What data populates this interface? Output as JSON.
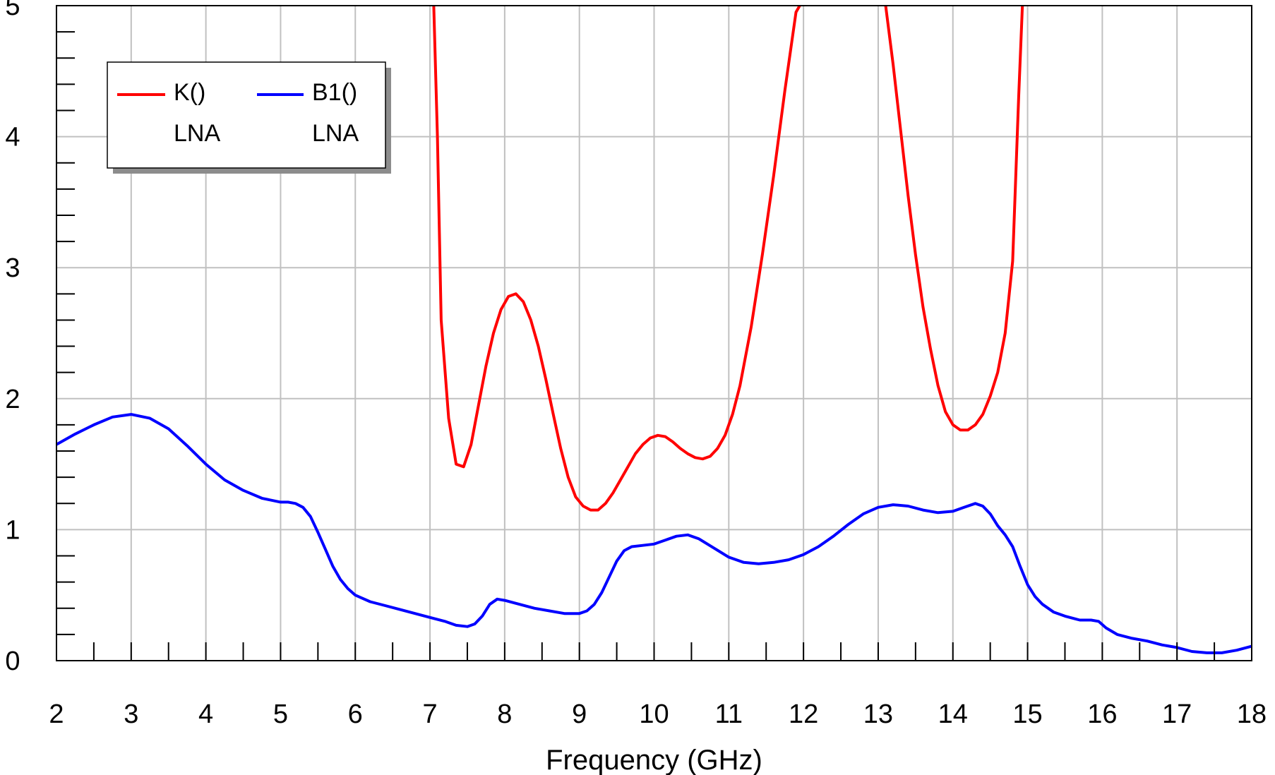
{
  "chart_data": {
    "type": "line",
    "title": "",
    "xlabel": "Frequency (GHz)",
    "ylabel": "",
    "xlim": [
      2,
      18
    ],
    "ylim": [
      0,
      5
    ],
    "xticks": [
      2,
      3,
      4,
      5,
      6,
      7,
      8,
      9,
      10,
      11,
      12,
      13,
      14,
      15,
      16,
      17,
      18
    ],
    "yticks": [
      0,
      1,
      2,
      3,
      4,
      5
    ],
    "grid": true,
    "legend_position": "top-left",
    "series": [
      {
        "name": "K()",
        "sub_label": "LNA",
        "color": "#ff0000",
        "points": [
          [
            7.05,
            5.0
          ],
          [
            7.1,
            4.0
          ],
          [
            7.15,
            2.6
          ],
          [
            7.25,
            1.85
          ],
          [
            7.35,
            1.5
          ],
          [
            7.45,
            1.48
          ],
          [
            7.55,
            1.65
          ],
          [
            7.65,
            1.95
          ],
          [
            7.75,
            2.25
          ],
          [
            7.85,
            2.5
          ],
          [
            7.95,
            2.68
          ],
          [
            8.05,
            2.78
          ],
          [
            8.15,
            2.8
          ],
          [
            8.25,
            2.74
          ],
          [
            8.35,
            2.6
          ],
          [
            8.45,
            2.4
          ],
          [
            8.55,
            2.15
          ],
          [
            8.65,
            1.88
          ],
          [
            8.75,
            1.62
          ],
          [
            8.85,
            1.4
          ],
          [
            8.95,
            1.25
          ],
          [
            9.05,
            1.18
          ],
          [
            9.15,
            1.15
          ],
          [
            9.25,
            1.15
          ],
          [
            9.35,
            1.2
          ],
          [
            9.45,
            1.28
          ],
          [
            9.55,
            1.38
          ],
          [
            9.65,
            1.48
          ],
          [
            9.75,
            1.58
          ],
          [
            9.85,
            1.65
          ],
          [
            9.95,
            1.7
          ],
          [
            10.05,
            1.72
          ],
          [
            10.15,
            1.71
          ],
          [
            10.25,
            1.67
          ],
          [
            10.35,
            1.62
          ],
          [
            10.45,
            1.58
          ],
          [
            10.55,
            1.55
          ],
          [
            10.65,
            1.54
          ],
          [
            10.75,
            1.56
          ],
          [
            10.85,
            1.62
          ],
          [
            10.95,
            1.72
          ],
          [
            11.05,
            1.88
          ],
          [
            11.15,
            2.1
          ],
          [
            11.3,
            2.55
          ],
          [
            11.45,
            3.1
          ],
          [
            11.6,
            3.7
          ],
          [
            11.75,
            4.35
          ],
          [
            11.9,
            4.95
          ],
          [
            11.95,
            5.0
          ]
        ]
      },
      {
        "name": "K()",
        "sub_label": "LNA",
        "color": "#ff0000",
        "points": [
          [
            13.1,
            5.0
          ],
          [
            13.2,
            4.55
          ],
          [
            13.3,
            4.05
          ],
          [
            13.4,
            3.55
          ],
          [
            13.5,
            3.1
          ],
          [
            13.6,
            2.7
          ],
          [
            13.7,
            2.38
          ],
          [
            13.8,
            2.1
          ],
          [
            13.9,
            1.9
          ],
          [
            14.0,
            1.8
          ],
          [
            14.1,
            1.76
          ],
          [
            14.2,
            1.76
          ],
          [
            14.3,
            1.8
          ],
          [
            14.4,
            1.88
          ],
          [
            14.5,
            2.02
          ],
          [
            14.6,
            2.2
          ],
          [
            14.7,
            2.5
          ],
          [
            14.8,
            3.05
          ],
          [
            14.88,
            4.3
          ],
          [
            14.93,
            5.0
          ]
        ]
      },
      {
        "name": "B1()",
        "sub_label": "LNA",
        "color": "#0000ff",
        "points": [
          [
            2.0,
            1.65
          ],
          [
            2.25,
            1.73
          ],
          [
            2.5,
            1.8
          ],
          [
            2.75,
            1.86
          ],
          [
            3.0,
            1.88
          ],
          [
            3.25,
            1.85
          ],
          [
            3.5,
            1.77
          ],
          [
            3.75,
            1.64
          ],
          [
            4.0,
            1.5
          ],
          [
            4.25,
            1.38
          ],
          [
            4.5,
            1.3
          ],
          [
            4.75,
            1.24
          ],
          [
            5.0,
            1.21
          ],
          [
            5.1,
            1.21
          ],
          [
            5.2,
            1.2
          ],
          [
            5.3,
            1.17
          ],
          [
            5.4,
            1.1
          ],
          [
            5.5,
            0.98
          ],
          [
            5.6,
            0.85
          ],
          [
            5.7,
            0.72
          ],
          [
            5.8,
            0.62
          ],
          [
            5.9,
            0.55
          ],
          [
            6.0,
            0.5
          ],
          [
            6.2,
            0.45
          ],
          [
            6.4,
            0.42
          ],
          [
            6.6,
            0.39
          ],
          [
            6.8,
            0.36
          ],
          [
            7.0,
            0.33
          ],
          [
            7.2,
            0.3
          ],
          [
            7.35,
            0.27
          ],
          [
            7.5,
            0.26
          ],
          [
            7.6,
            0.28
          ],
          [
            7.7,
            0.34
          ],
          [
            7.8,
            0.43
          ],
          [
            7.9,
            0.47
          ],
          [
            8.0,
            0.46
          ],
          [
            8.2,
            0.43
          ],
          [
            8.4,
            0.4
          ],
          [
            8.6,
            0.38
          ],
          [
            8.8,
            0.36
          ],
          [
            9.0,
            0.36
          ],
          [
            9.1,
            0.38
          ],
          [
            9.2,
            0.43
          ],
          [
            9.3,
            0.52
          ],
          [
            9.4,
            0.64
          ],
          [
            9.5,
            0.76
          ],
          [
            9.6,
            0.84
          ],
          [
            9.7,
            0.87
          ],
          [
            9.85,
            0.88
          ],
          [
            10.0,
            0.89
          ],
          [
            10.15,
            0.92
          ],
          [
            10.3,
            0.95
          ],
          [
            10.45,
            0.96
          ],
          [
            10.6,
            0.93
          ],
          [
            10.8,
            0.86
          ],
          [
            11.0,
            0.79
          ],
          [
            11.2,
            0.75
          ],
          [
            11.4,
            0.74
          ],
          [
            11.6,
            0.75
          ],
          [
            11.8,
            0.77
          ],
          [
            12.0,
            0.81
          ],
          [
            12.2,
            0.87
          ],
          [
            12.4,
            0.95
          ],
          [
            12.6,
            1.04
          ],
          [
            12.8,
            1.12
          ],
          [
            13.0,
            1.17
          ],
          [
            13.2,
            1.19
          ],
          [
            13.4,
            1.18
          ],
          [
            13.6,
            1.15
          ],
          [
            13.8,
            1.13
          ],
          [
            14.0,
            1.14
          ],
          [
            14.15,
            1.17
          ],
          [
            14.3,
            1.2
          ],
          [
            14.4,
            1.18
          ],
          [
            14.5,
            1.12
          ],
          [
            14.6,
            1.03
          ],
          [
            14.7,
            0.96
          ],
          [
            14.8,
            0.87
          ],
          [
            14.9,
            0.72
          ],
          [
            15.0,
            0.58
          ],
          [
            15.1,
            0.49
          ],
          [
            15.2,
            0.43
          ],
          [
            15.35,
            0.37
          ],
          [
            15.5,
            0.34
          ],
          [
            15.7,
            0.31
          ],
          [
            15.85,
            0.31
          ],
          [
            15.95,
            0.3
          ],
          [
            16.05,
            0.25
          ],
          [
            16.2,
            0.2
          ],
          [
            16.4,
            0.17
          ],
          [
            16.6,
            0.15
          ],
          [
            16.8,
            0.12
          ],
          [
            17.0,
            0.1
          ],
          [
            17.2,
            0.07
          ],
          [
            17.4,
            0.06
          ],
          [
            17.6,
            0.06
          ],
          [
            17.8,
            0.08
          ],
          [
            18.0,
            0.11
          ]
        ]
      }
    ]
  },
  "legend": [
    {
      "name": "K()",
      "sub_label": "LNA",
      "color": "#ff0000"
    },
    {
      "name": "B1()",
      "sub_label": "LNA",
      "color": "#0000ff"
    }
  ]
}
